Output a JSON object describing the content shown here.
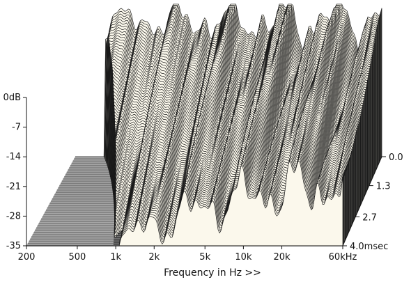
{
  "chart_data": {
    "type": "waterfall-3d",
    "title": "",
    "xlabel": "Frequency in Hz >>",
    "ylabel": "",
    "zlabel": "",
    "x_scale": "log",
    "x_range_hz": [
      200,
      60000
    ],
    "y_range_db": [
      -35,
      0
    ],
    "time_range_ms": [
      0,
      4.0
    ],
    "x_ticks": [
      {
        "value": 200,
        "label": "200"
      },
      {
        "value": 500,
        "label": "500"
      },
      {
        "value": 1000,
        "label": "1k"
      },
      {
        "value": 2000,
        "label": "2k"
      },
      {
        "value": 5000,
        "label": "5k"
      },
      {
        "value": 10000,
        "label": "10k"
      },
      {
        "value": 20000,
        "label": "20k"
      },
      {
        "value": 60000,
        "label": "60kHz"
      }
    ],
    "y_ticks": [
      {
        "value": 0,
        "label": "0dB"
      },
      {
        "value": -7,
        "label": "-7"
      },
      {
        "value": -14,
        "label": "-14"
      },
      {
        "value": -21,
        "label": "-21"
      },
      {
        "value": -28,
        "label": "-28"
      },
      {
        "value": -35,
        "label": "-35"
      }
    ],
    "time_ticks": [
      {
        "value": 0.0,
        "label": "0.0"
      },
      {
        "value": 1.3,
        "label": "1.3"
      },
      {
        "value": 2.7,
        "label": "2.7"
      },
      {
        "value": 4.0,
        "label": "4.0msec"
      }
    ],
    "colors": {
      "surface_fill": "#fbf8ec",
      "trace_line": "#1a1a1a",
      "floor_stripe_dark": "#7d7d7d",
      "floor_stripe_light": "#a6a6a6"
    }
  }
}
